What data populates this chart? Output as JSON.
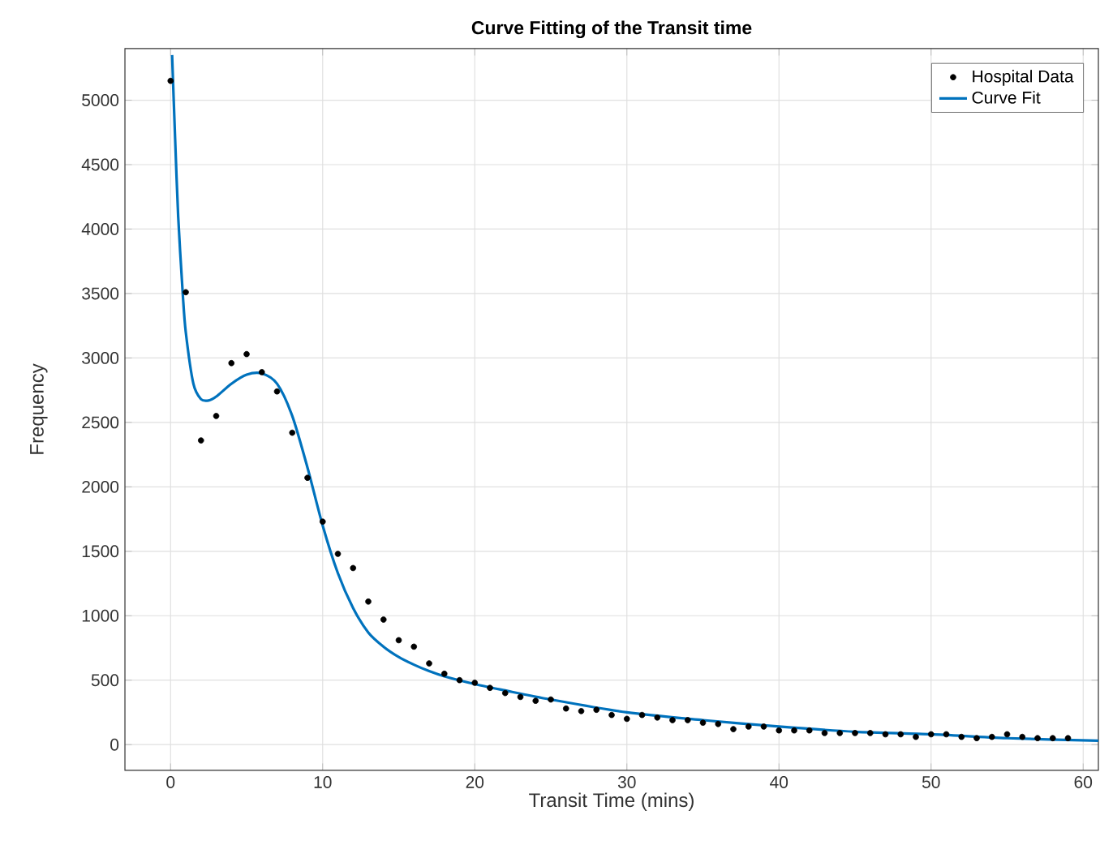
{
  "chart_data": {
    "type": "scatter",
    "title": "Curve Fitting of the Transit time",
    "xlabel": "Transit Time (mins)",
    "ylabel": "Frequency",
    "xlim": [
      -3,
      61
    ],
    "ylim": [
      -200,
      5400
    ],
    "xticks": [
      0,
      10,
      20,
      30,
      40,
      50,
      60
    ],
    "yticks": [
      0,
      500,
      1000,
      1500,
      2000,
      2500,
      3000,
      3500,
      4000,
      4500,
      5000
    ],
    "grid": true,
    "legend": "top right",
    "series": [
      {
        "name": "Hospital Data",
        "marker": "circle",
        "color": "#000000",
        "x": [
          0,
          1,
          2,
          3,
          4,
          5,
          6,
          7,
          8,
          9,
          10,
          11,
          12,
          13,
          14,
          15,
          16,
          17,
          18,
          19,
          20,
          21,
          22,
          23,
          24,
          25,
          26,
          27,
          28,
          29,
          30,
          31,
          32,
          33,
          34,
          35,
          36,
          37,
          38,
          39,
          40,
          41,
          42,
          43,
          44,
          45,
          46,
          47,
          48,
          49,
          50,
          51,
          52,
          53,
          54,
          55,
          56,
          57,
          58,
          59
        ],
        "values": [
          5150,
          3510,
          2360,
          2550,
          2960,
          3030,
          2890,
          2740,
          2420,
          2070,
          1730,
          1480,
          1370,
          1110,
          970,
          810,
          760,
          630,
          550,
          500,
          480,
          440,
          400,
          370,
          340,
          350,
          280,
          260,
          270,
          230,
          200,
          230,
          210,
          190,
          190,
          170,
          160,
          120,
          140,
          140,
          110,
          110,
          110,
          90,
          90,
          90,
          90,
          80,
          80,
          60,
          80,
          80,
          60,
          50,
          60,
          80,
          60,
          50,
          50,
          50
        ]
      },
      {
        "name": "Curve Fit",
        "type": "line",
        "marker": "none",
        "color": "#0072bd",
        "x": [
          0.1,
          0.3,
          0.5,
          0.8,
          1.0,
          1.5,
          2.0,
          2.5,
          3,
          4,
          5,
          6,
          7,
          8,
          9,
          10,
          11,
          12,
          13,
          14,
          15,
          16,
          17,
          18,
          20,
          22,
          25,
          30,
          35,
          40,
          45,
          50,
          55,
          61
        ],
        "values": [
          5350,
          4700,
          4100,
          3500,
          3200,
          2800,
          2680,
          2670,
          2700,
          2800,
          2870,
          2880,
          2800,
          2550,
          2150,
          1700,
          1330,
          1060,
          870,
          760,
          680,
          620,
          570,
          530,
          470,
          420,
          350,
          250,
          190,
          140,
          100,
          80,
          50,
          30
        ]
      }
    ]
  }
}
